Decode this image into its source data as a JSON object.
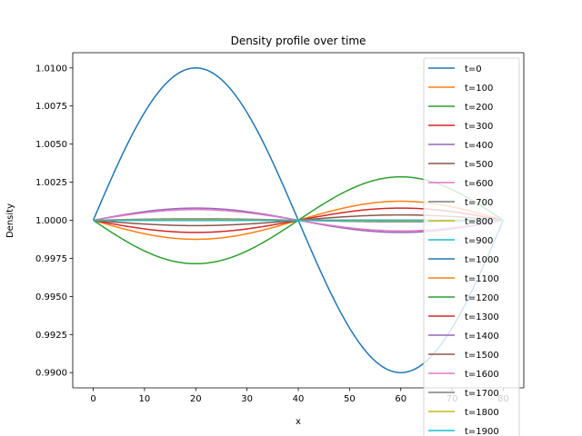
{
  "chart_data": {
    "type": "line",
    "title": "Density profile over time",
    "xlabel": "x",
    "ylabel": "Density",
    "xlim": [
      -4,
      84
    ],
    "ylim": [
      0.989,
      1.011
    ],
    "xticks": [
      0,
      10,
      20,
      30,
      40,
      50,
      60,
      70,
      80
    ],
    "yticks": [
      0.99,
      0.9925,
      0.995,
      0.9975,
      1.0,
      1.0025,
      1.005,
      1.0075,
      1.01
    ],
    "xtick_labels": [
      "0",
      "10",
      "20",
      "30",
      "40",
      "50",
      "60",
      "70",
      "80"
    ],
    "ytick_labels": [
      "0.9900",
      "0.9925",
      "0.9950",
      "0.9975",
      "1.0000",
      "1.0025",
      "1.0050",
      "1.0075",
      "1.0100"
    ],
    "x_range": [
      0,
      80
    ],
    "profile": "amplitude * sin(2*pi*x/80) around mean density 1.0",
    "mean_density": 1.0,
    "legend_position": "right, overflowing the axes",
    "grid": false,
    "series": [
      {
        "name": "t=0",
        "amplitude": 0.01,
        "color": "#1f77b4"
      },
      {
        "name": "t=100",
        "amplitude": -0.00125,
        "color": "#ff7f0e"
      },
      {
        "name": "t=200",
        "amplitude": -0.00285,
        "color": "#2ca02c"
      },
      {
        "name": "t=300",
        "amplitude": -0.0008,
        "color": "#d62728"
      },
      {
        "name": "t=400",
        "amplitude": 0.0008,
        "color": "#9467bd"
      },
      {
        "name": "t=500",
        "amplitude": -0.00035,
        "color": "#8c564b"
      },
      {
        "name": "t=600",
        "amplitude": 0.0007,
        "color": "#e377c2"
      },
      {
        "name": "t=700",
        "amplitude": 0.0001,
        "color": "#7f7f7f"
      },
      {
        "name": "t=800",
        "amplitude": 5e-05,
        "color": "#bcbd22"
      },
      {
        "name": "t=900",
        "amplitude": 0.0,
        "color": "#17becf"
      },
      {
        "name": "t=1000",
        "amplitude": 0.0,
        "color": "#1f77b4"
      },
      {
        "name": "t=1100",
        "amplitude": 0.0,
        "color": "#ff7f0e"
      },
      {
        "name": "t=1200",
        "amplitude": 0.0,
        "color": "#2ca02c"
      },
      {
        "name": "t=1300",
        "amplitude": 0.0,
        "color": "#d62728"
      },
      {
        "name": "t=1400",
        "amplitude": 0.0,
        "color": "#9467bd"
      },
      {
        "name": "t=1500",
        "amplitude": 0.0,
        "color": "#8c564b"
      },
      {
        "name": "t=1600",
        "amplitude": 0.0,
        "color": "#e377c2"
      },
      {
        "name": "t=1700",
        "amplitude": 0.0,
        "color": "#7f7f7f"
      },
      {
        "name": "t=1800",
        "amplitude": 0.0,
        "color": "#bcbd22"
      },
      {
        "name": "t=1900",
        "amplitude": 0.0,
        "color": "#17becf"
      }
    ]
  }
}
